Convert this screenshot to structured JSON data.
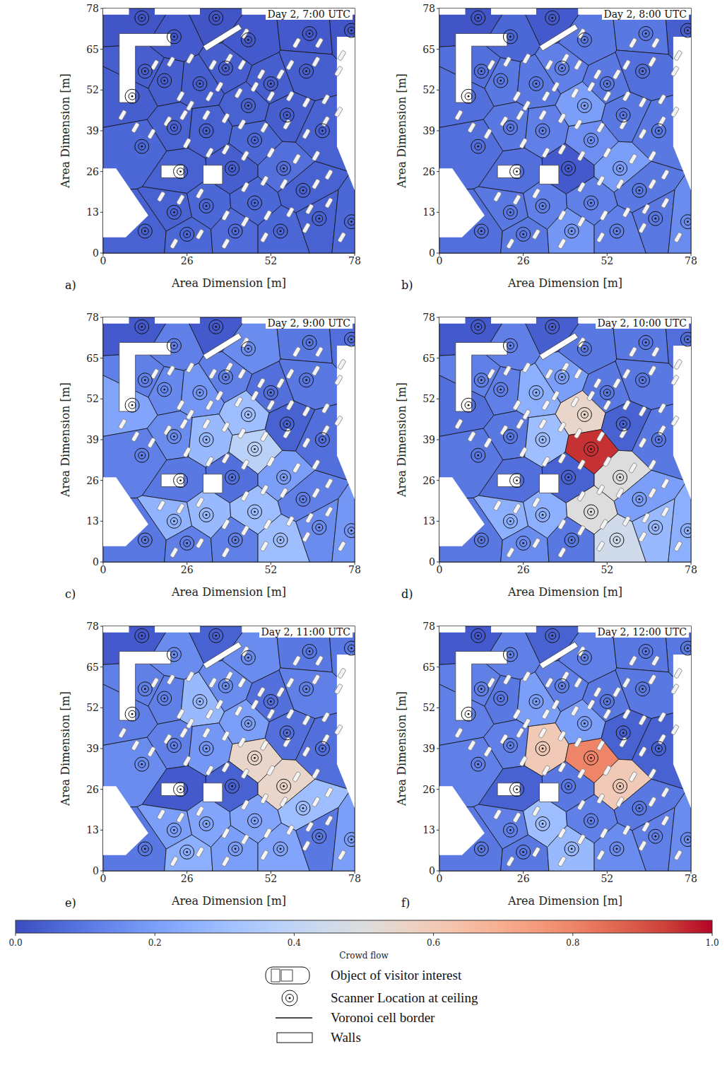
{
  "chart_data": [
    {
      "type": "heatmap",
      "panel_label": "a)",
      "title": "Day 2, 7:00 UTC",
      "x_label": "Area Dimension [m]",
      "y_label": "Area Dimension [m]",
      "xlim": [
        0,
        78
      ],
      "ylim": [
        0,
        78
      ],
      "xticks": [
        0,
        26,
        52,
        78
      ],
      "yticks": [
        0,
        13,
        26,
        39,
        52,
        65,
        78
      ],
      "values": [
        0.02,
        0.02,
        0.02,
        0.03,
        0.03,
        0.03,
        0.04,
        0.04,
        0.04,
        0.04,
        0.04,
        0.04,
        0.04,
        0.05,
        0.05,
        0.05,
        0.04,
        0.05,
        0.06,
        0.06,
        0.04,
        0.08,
        0.05,
        0.05,
        0.05,
        0.06,
        0.06,
        0.05,
        0.06,
        0.05,
        0.06,
        0.07,
        0.06
      ]
    },
    {
      "type": "heatmap",
      "panel_label": "b)",
      "title": "Day 2, 8:00 UTC",
      "x_label": "Area Dimension [m]",
      "y_label": "Area Dimension [m]",
      "xlim": [
        0,
        78
      ],
      "ylim": [
        0,
        78
      ],
      "xticks": [
        0,
        26,
        52,
        78
      ],
      "yticks": [
        0,
        13,
        26,
        39,
        52,
        65,
        78
      ],
      "values": [
        0.02,
        0.03,
        0.04,
        0.06,
        0.1,
        0.1,
        0.08,
        0.1,
        0.08,
        0.1,
        0.12,
        0.1,
        0.08,
        0.2,
        0.1,
        0.12,
        0.1,
        0.1,
        0.08,
        0.16,
        0.03,
        0.2,
        0.08,
        0.1,
        0.1,
        0.12,
        0.12,
        0.1,
        0.15,
        0.08,
        0.1,
        0.18,
        0.12
      ]
    },
    {
      "type": "heatmap",
      "panel_label": "c)",
      "title": "Day 2, 9:00 UTC",
      "x_label": "Area Dimension [m]",
      "y_label": "Area Dimension [m]",
      "xlim": [
        0,
        78
      ],
      "ylim": [
        0,
        78
      ],
      "xticks": [
        0,
        26,
        52,
        78
      ],
      "yticks": [
        0,
        13,
        26,
        39,
        52,
        65,
        78
      ],
      "values": [
        0.03,
        0.03,
        0.08,
        0.12,
        0.15,
        0.1,
        0.12,
        0.14,
        0.22,
        0.18,
        0.12,
        0.08,
        0.1,
        0.3,
        0.15,
        0.28,
        0.05,
        0.08,
        0.12,
        0.38,
        0.08,
        0.2,
        0.1,
        0.12,
        0.26,
        0.28,
        0.3,
        0.15,
        0.18,
        0.1,
        0.12,
        0.12,
        0.3
      ]
    },
    {
      "type": "heatmap",
      "panel_label": "d)",
      "title": "Day 2, 10:00 UTC",
      "x_label": "Area Dimension [m]",
      "y_label": "Area Dimension [m]",
      "xlim": [
        0,
        78
      ],
      "ylim": [
        0,
        78
      ],
      "xticks": [
        0,
        26,
        52,
        78
      ],
      "yticks": [
        0,
        13,
        26,
        39,
        52,
        65,
        78
      ],
      "values": [
        0.03,
        0.04,
        0.08,
        0.12,
        0.1,
        0.1,
        0.12,
        0.12,
        0.08,
        0.25,
        0.2,
        0.1,
        0.1,
        0.55,
        0.1,
        0.3,
        0.05,
        0.1,
        0.1,
        0.95,
        0.05,
        0.5,
        0.08,
        0.2,
        0.25,
        0.25,
        0.5,
        0.28,
        0.25,
        0.1,
        0.15,
        0.1,
        0.45
      ]
    },
    {
      "type": "heatmap",
      "panel_label": "e)",
      "title": "Day 2, 11:00 UTC",
      "x_label": "Area Dimension [m]",
      "y_label": "Area Dimension [m]",
      "xlim": [
        0,
        78
      ],
      "ylim": [
        0,
        78
      ],
      "xticks": [
        0,
        26,
        52,
        78
      ],
      "yticks": [
        0,
        13,
        26,
        39,
        52,
        65,
        78
      ],
      "values": [
        0.03,
        0.05,
        0.1,
        0.15,
        0.15,
        0.1,
        0.12,
        0.12,
        0.12,
        0.28,
        0.15,
        0.08,
        0.12,
        0.2,
        0.12,
        0.18,
        0.08,
        0.08,
        0.15,
        0.55,
        0.05,
        0.55,
        0.03,
        0.3,
        0.2,
        0.22,
        0.22,
        0.1,
        0.2,
        0.1,
        0.25,
        0.2,
        0.22
      ]
    },
    {
      "type": "heatmap",
      "panel_label": "f)",
      "title": "Day 2, 12:00 UTC",
      "x_label": "Area Dimension [m]",
      "y_label": "Area Dimension [m]",
      "xlim": [
        0,
        78
      ],
      "ylim": [
        0,
        78
      ],
      "xticks": [
        0,
        26,
        52,
        78
      ],
      "yticks": [
        0,
        13,
        26,
        39,
        52,
        65,
        78
      ],
      "values": [
        0.03,
        0.05,
        0.1,
        0.12,
        0.12,
        0.1,
        0.12,
        0.1,
        0.12,
        0.2,
        0.12,
        0.1,
        0.1,
        0.2,
        0.12,
        0.6,
        0.05,
        0.05,
        0.12,
        0.8,
        0.1,
        0.6,
        0.05,
        0.1,
        0.12,
        0.3,
        0.12,
        0.12,
        0.15,
        0.1,
        0.1,
        0.28,
        0.15
      ]
    }
  ],
  "scanners": {
    "x": [
      12,
      35,
      77,
      22,
      45,
      64,
      13,
      19,
      9,
      30,
      38,
      52,
      63,
      45,
      22,
      32,
      57,
      68,
      12,
      47,
      40,
      56,
      24,
      62,
      22,
      32,
      47,
      67,
      77,
      13,
      26,
      41,
      55
    ],
    "y": [
      75,
      75,
      71,
      69,
      68,
      70,
      58,
      55,
      50,
      54,
      59,
      54,
      58,
      47,
      40,
      39,
      44,
      39,
      34,
      36,
      27,
      27,
      26,
      20,
      13,
      15,
      16,
      11,
      10,
      7,
      6,
      7,
      7
    ]
  },
  "objects": {
    "x": [
      44,
      60,
      67,
      74,
      73,
      66,
      58,
      55,
      49,
      43,
      39,
      34,
      27,
      21,
      16,
      24,
      27,
      33,
      36,
      42,
      47,
      52,
      58,
      63,
      69,
      73,
      69,
      63,
      57,
      50,
      43,
      38,
      32,
      25,
      20,
      15,
      10,
      6,
      26,
      33,
      38,
      44,
      52,
      60,
      66,
      70,
      66,
      56,
      50,
      44,
      30,
      24,
      18,
      38,
      44,
      51,
      58,
      64,
      70,
      74,
      63,
      50,
      38,
      30,
      22
    ],
    "y": [
      70,
      67,
      67,
      63,
      58,
      61,
      60,
      57,
      57,
      60,
      62,
      60,
      62,
      61,
      60,
      50,
      47,
      50,
      53,
      51,
      53,
      50,
      50,
      48,
      49,
      45,
      42,
      38,
      41,
      40,
      41,
      43,
      44,
      44,
      42,
      38,
      40,
      44,
      35,
      32,
      33,
      31,
      32,
      30,
      31,
      25,
      22,
      22,
      23,
      21,
      19,
      17,
      18,
      12,
      10,
      12,
      13,
      14,
      16,
      5,
      8,
      5,
      3,
      6,
      3
    ]
  },
  "walls": [
    [
      [
        5,
        48
      ],
      [
        10,
        48
      ],
      [
        10,
        66
      ],
      [
        21,
        66
      ],
      [
        21,
        70
      ],
      [
        5,
        70
      ]
    ],
    [
      [
        31,
        66
      ],
      [
        42,
        73
      ],
      [
        43,
        71.5
      ],
      [
        32,
        64.5
      ]
    ],
    [
      [
        18,
        24
      ],
      [
        25,
        24
      ],
      [
        25,
        28
      ],
      [
        18,
        28
      ]
    ],
    [
      [
        31,
        22
      ],
      [
        37,
        22
      ],
      [
        37,
        28
      ],
      [
        31,
        28
      ]
    ]
  ],
  "outside_area": [
    [
      [
        0,
        5
      ],
      [
        7,
        5
      ],
      [
        14,
        12
      ],
      [
        4,
        27
      ],
      [
        0,
        27
      ]
    ],
    [
      [
        72.5,
        34
      ],
      [
        78,
        20
      ],
      [
        78,
        69
      ],
      [
        72.5,
        69
      ]
    ],
    [
      [
        0,
        76
      ],
      [
        8,
        76
      ],
      [
        8,
        78
      ],
      [
        0,
        78
      ]
    ],
    [
      [
        16,
        76
      ],
      [
        30,
        76
      ],
      [
        30,
        78
      ],
      [
        16,
        78
      ]
    ],
    [
      [
        43,
        76
      ],
      [
        78,
        76
      ],
      [
        78,
        78
      ],
      [
        43,
        78
      ]
    ]
  ],
  "colorbar": {
    "label": "Crowd flow",
    "range": [
      0,
      1
    ],
    "ticks": [
      {
        "value": 0,
        "label": "0.0"
      },
      {
        "value": 0.2,
        "label": "0.2"
      },
      {
        "value": 0.4,
        "label": "0.4"
      },
      {
        "value": 0.6,
        "label": "0.6"
      },
      {
        "value": 0.8,
        "label": "0.8"
      },
      {
        "value": 1,
        "label": "1.0"
      }
    ]
  },
  "legend_items": [
    "Object of visitor interest",
    "Scanner Location at ceiling",
    "Voronoi cell border",
    "Walls"
  ]
}
